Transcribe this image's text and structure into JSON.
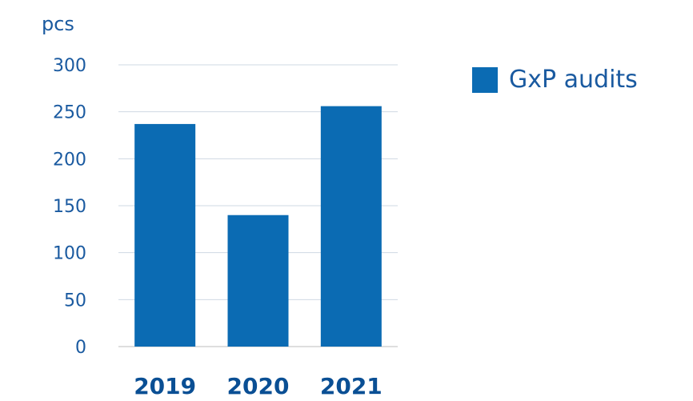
{
  "chart_data": {
    "type": "bar",
    "categories": [
      "2019",
      "2020",
      "2021"
    ],
    "series": [
      {
        "name": "GxP audits",
        "values": [
          237,
          140,
          256
        ]
      }
    ],
    "ylabel": "pcs",
    "ylim": [
      0,
      300
    ],
    "yticks": [
      0,
      50,
      100,
      150,
      200,
      250,
      300
    ],
    "grid": true,
    "legend_position": "right",
    "colors": {
      "bar": "#0b6bb3",
      "text": "#1a5aa0",
      "category_text": "#0a4f94",
      "grid": "#cfd8e3",
      "axis": "#bdbdbd"
    }
  }
}
